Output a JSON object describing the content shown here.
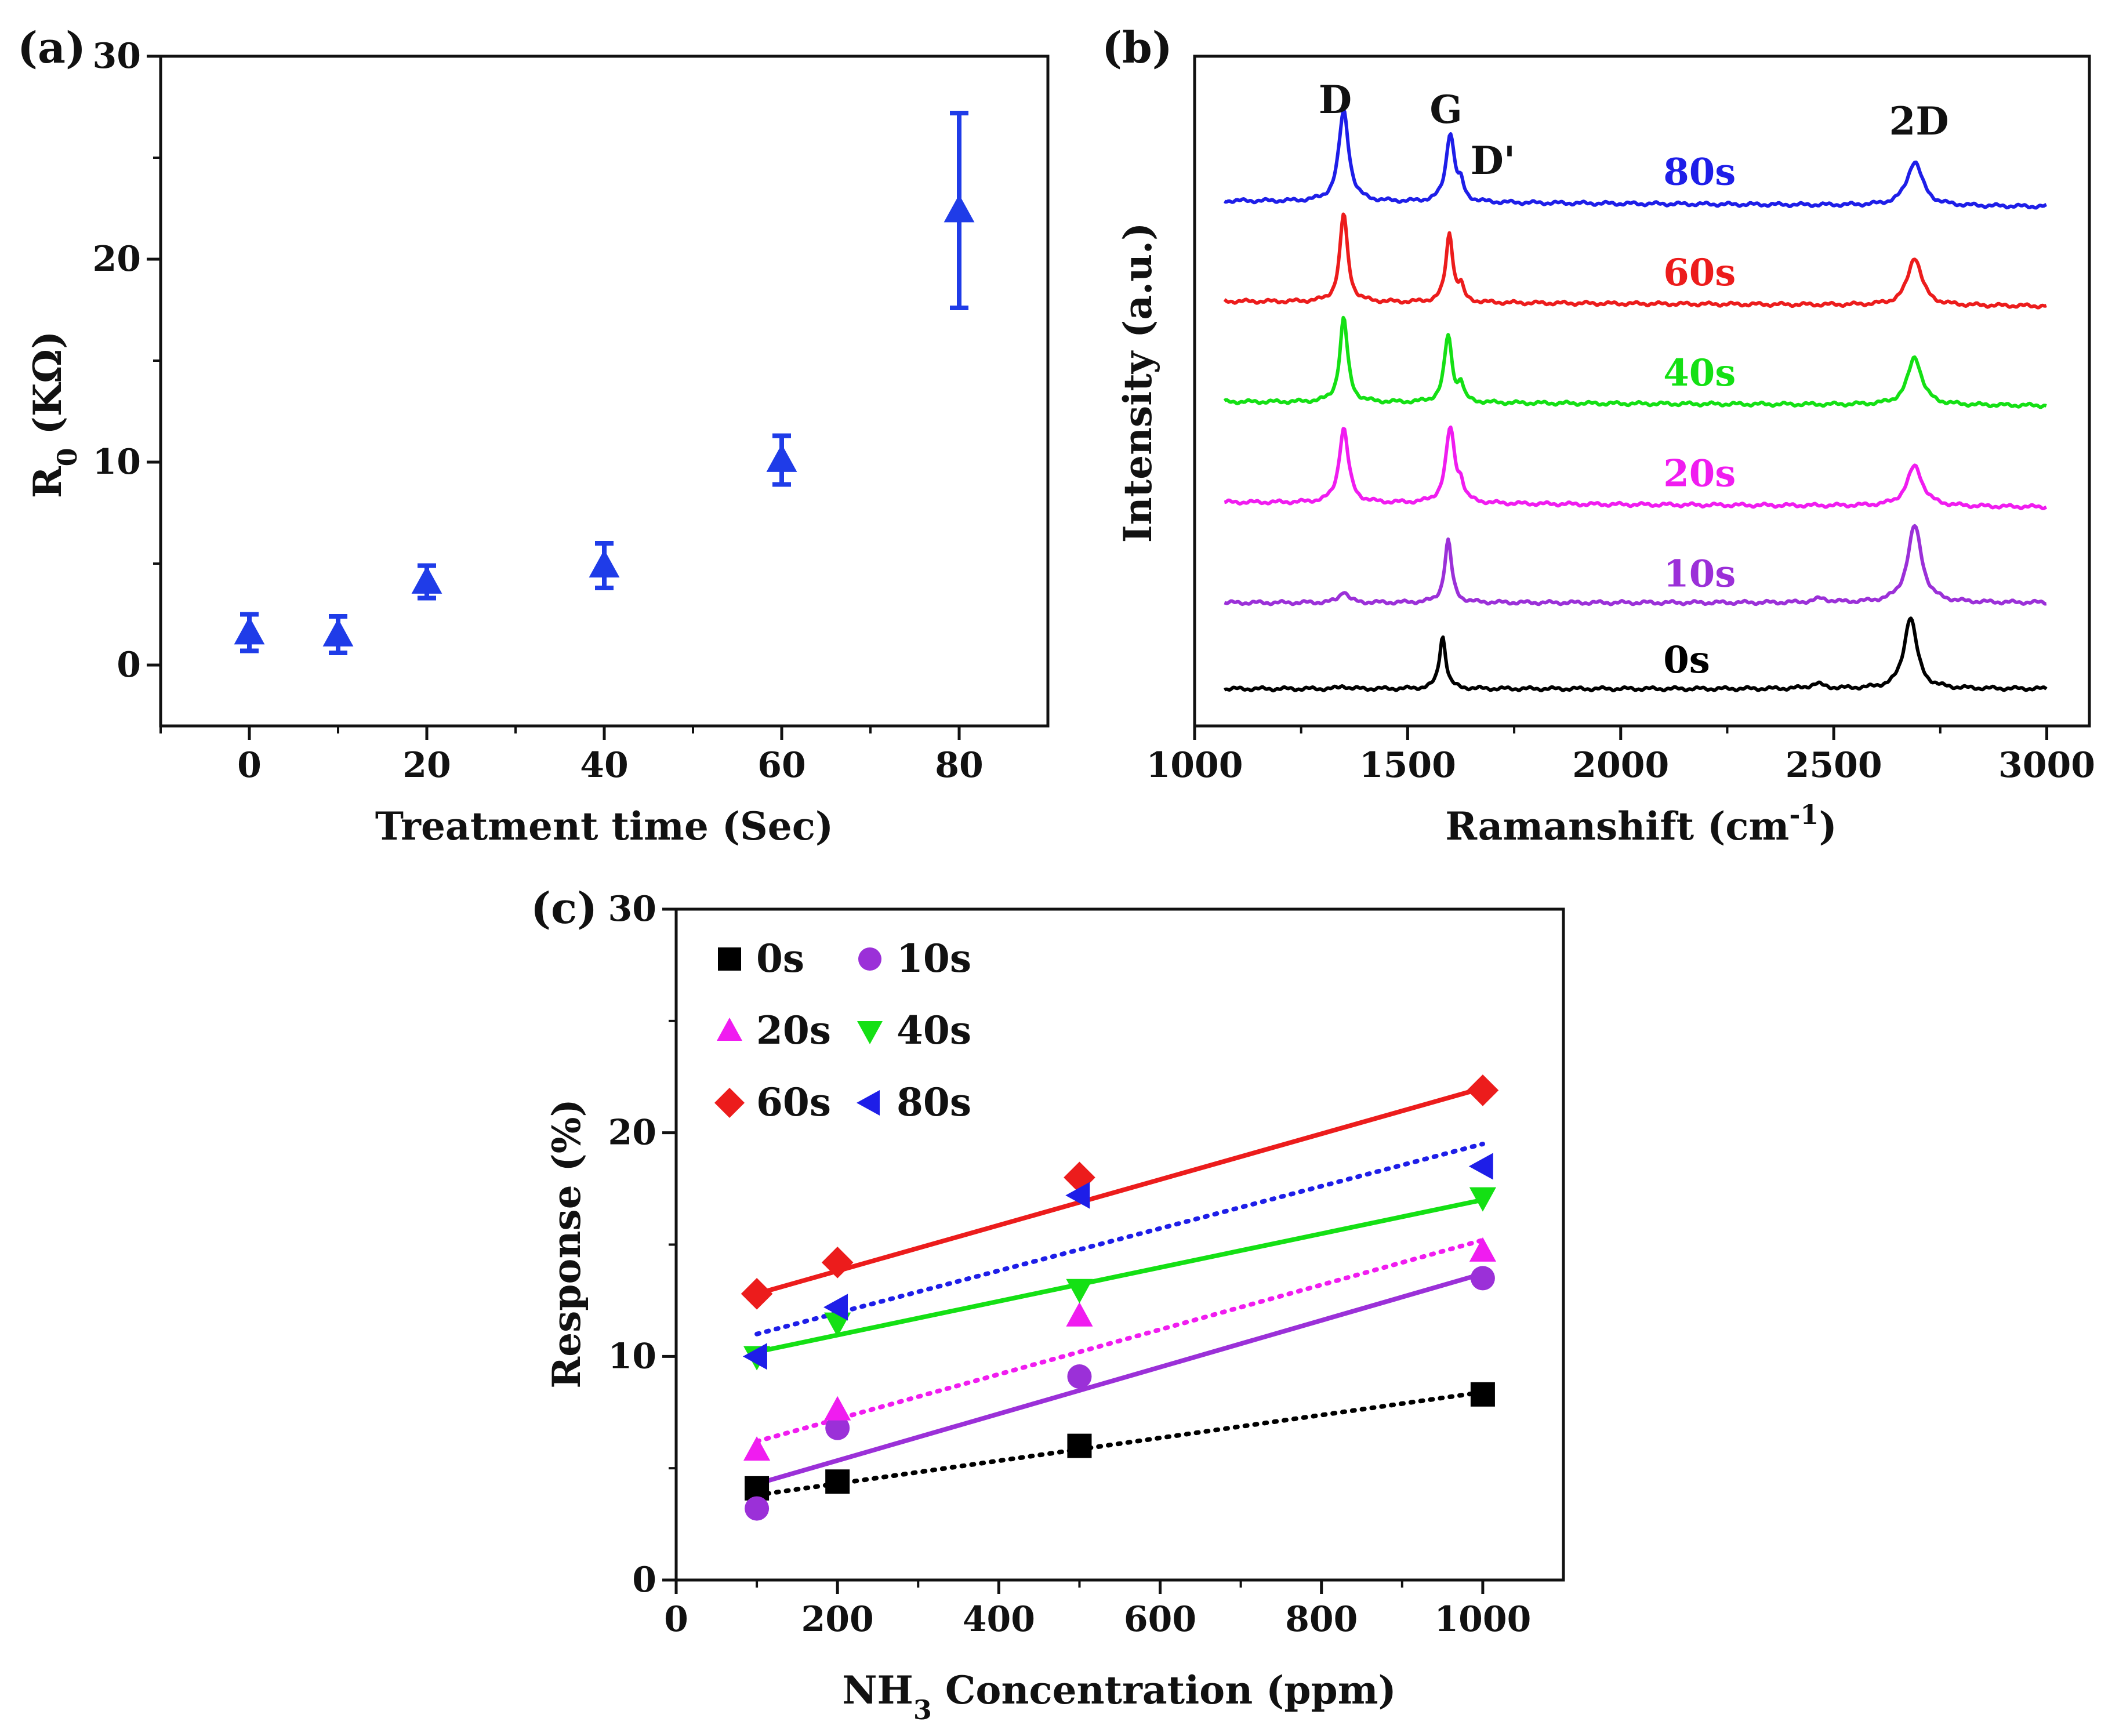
{
  "chart_data": [
    {
      "id": "a",
      "type": "scatter",
      "panel_label": "(a)",
      "xlabel": "Treatment time (Sec)",
      "ylabel_main": "R",
      "ylabel_sub": "0",
      "ylabel_rest": " (KΩ)",
      "xlim": [
        -10,
        90
      ],
      "ylim": [
        -3,
        30
      ],
      "xticks": [
        0,
        20,
        40,
        60,
        80
      ],
      "yticks": [
        0,
        10,
        20,
        30
      ],
      "marker_color": "#1f3ce8",
      "series": [
        {
          "name": "R0",
          "points": [
            {
              "x": 0,
              "y": 1.6,
              "err": 0.9
            },
            {
              "x": 10,
              "y": 1.5,
              "err": 0.9
            },
            {
              "x": 20,
              "y": 4.1,
              "err": 0.8
            },
            {
              "x": 40,
              "y": 4.9,
              "err": 1.1
            },
            {
              "x": 60,
              "y": 10.1,
              "err": 1.2
            },
            {
              "x": 80,
              "y": 22.4,
              "err": 4.8
            }
          ]
        }
      ]
    },
    {
      "id": "b",
      "type": "line",
      "panel_label": "(b)",
      "xlabel_main": "Ramanshift (cm",
      "xlabel_sup": "-1",
      "xlabel_end": ")",
      "ylabel": "Intensity (a.u.)",
      "xlim": [
        1000,
        3100
      ],
      "xticks": [
        1000,
        1500,
        2000,
        2500,
        3000
      ],
      "peak_labels": [
        {
          "text": "D",
          "x": 1330,
          "trace": "80s"
        },
        {
          "text": "G",
          "x": 1590,
          "trace": "80s"
        },
        {
          "text": "D'",
          "x": 1700,
          "trace": "80s"
        },
        {
          "text": "2D",
          "x": 2700,
          "trace": "80s"
        }
      ],
      "series": [
        {
          "name": "0s",
          "color": "#000000",
          "offset": 0.0,
          "tilt": 0.0,
          "peaks": [
            [
              1350,
              0.03,
              10
            ],
            [
              1582,
              0.55,
              9
            ],
            [
              2460,
              0.05,
              20
            ],
            [
              2680,
              0.75,
              18
            ]
          ]
        },
        {
          "name": "10s",
          "color": "#9b30d8",
          "offset": 0.9,
          "tilt": 0.0,
          "peaks": [
            [
              1350,
              0.12,
              12
            ],
            [
              1595,
              0.65,
              10
            ],
            [
              2470,
              0.04,
              20
            ],
            [
              2690,
              0.8,
              20
            ]
          ]
        },
        {
          "name": "20s",
          "color": "#f01cf0",
          "offset": 1.95,
          "tilt": -0.05,
          "peaks": [
            [
              1350,
              0.78,
              13
            ],
            [
              1600,
              0.78,
              13
            ],
            [
              1625,
              0.15,
              8
            ],
            [
              2690,
              0.42,
              22
            ]
          ]
        },
        {
          "name": "40s",
          "color": "#14e014",
          "offset": 3.0,
          "tilt": -0.04,
          "peaks": [
            [
              1350,
              0.88,
              11
            ],
            [
              1595,
              0.7,
              11
            ],
            [
              1625,
              0.18,
              7
            ],
            [
              2690,
              0.5,
              20
            ]
          ]
        },
        {
          "name": "60s",
          "color": "#ec1c1c",
          "offset": 4.05,
          "tilt": -0.05,
          "peaks": [
            [
              1350,
              0.92,
              11
            ],
            [
              1598,
              0.72,
              10
            ],
            [
              1625,
              0.15,
              7
            ],
            [
              2690,
              0.5,
              20
            ]
          ]
        },
        {
          "name": "80s",
          "color": "#1e1ee8",
          "offset": 5.1,
          "tilt": -0.06,
          "peaks": [
            [
              1350,
              0.95,
              14
            ],
            [
              1600,
              0.72,
              12
            ],
            [
              1625,
              0.15,
              8
            ],
            [
              2690,
              0.46,
              22
            ]
          ]
        }
      ]
    },
    {
      "id": "c",
      "type": "scatter",
      "panel_label": "(c)",
      "xlabel_main": "NH",
      "xlabel_sub": "3",
      "xlabel_rest": " Concentration (ppm)",
      "ylabel": "Response (%)",
      "xlim": [
        0,
        1100
      ],
      "ylim": [
        0,
        30
      ],
      "xticks": [
        0,
        200,
        400,
        600,
        800,
        1000
      ],
      "yticks": [
        0,
        10,
        20,
        30
      ],
      "x": [
        100,
        200,
        500,
        1000
      ],
      "series": [
        {
          "name": "0s",
          "marker": "square",
          "color": "#000000",
          "fit": "dotted",
          "values": [
            4.1,
            4.4,
            6.0,
            8.3
          ],
          "fit_line": [
            3.8,
            8.4
          ]
        },
        {
          "name": "10s",
          "marker": "circle",
          "color": "#9b30d8",
          "fit": "solid",
          "values": [
            3.2,
            6.8,
            9.1,
            13.5
          ],
          "fit_line": [
            4.3,
            13.7
          ]
        },
        {
          "name": "20s",
          "marker": "triangle-up",
          "color": "#f01cf0",
          "fit": "dotted",
          "values": [
            5.8,
            7.6,
            11.8,
            14.7
          ],
          "fit_line": [
            6.2,
            15.2
          ]
        },
        {
          "name": "40s",
          "marker": "triangle-down",
          "color": "#14e014",
          "fit": "solid",
          "values": [
            10.0,
            11.5,
            13.0,
            17.1
          ],
          "fit_line": [
            10.2,
            17.0
          ]
        },
        {
          "name": "60s",
          "marker": "diamond",
          "color": "#ec1c1c",
          "fit": "solid",
          "values": [
            12.8,
            14.2,
            18.0,
            21.9
          ],
          "fit_line": [
            12.8,
            22.0
          ]
        },
        {
          "name": "80s",
          "marker": "triangle-left",
          "color": "#1e1ee8",
          "fit": "dotted",
          "values": [
            10.0,
            12.2,
            17.2,
            18.5
          ],
          "fit_line": [
            11.0,
            19.5
          ]
        }
      ]
    }
  ]
}
